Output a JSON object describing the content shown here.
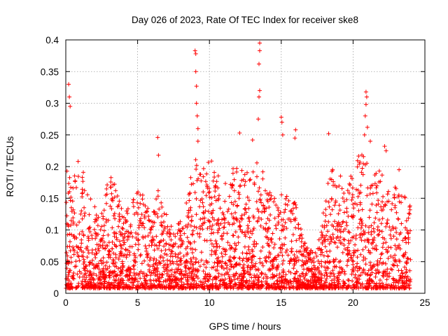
{
  "chart_data": {
    "type": "scatter",
    "title": "Day 026 of 2023, Rate Of TEC Index for receiver ske8",
    "xlabel": "GPS time / hours",
    "ylabel": "ROTI / TECUs",
    "xlim": [
      0,
      25
    ],
    "ylim": [
      0,
      0.4
    ],
    "xticks": [
      0,
      5,
      10,
      15,
      20,
      25
    ],
    "xtick_labels": [
      "0",
      "5",
      "10",
      "15",
      "20",
      "25"
    ],
    "yticks": [
      0,
      0.05,
      0.1,
      0.15,
      0.2,
      0.25,
      0.3,
      0.35,
      0.4
    ],
    "ytick_labels": [
      "0",
      "0.05",
      "0.1",
      "0.15",
      "0.2",
      "0.25",
      "0.3",
      "0.35",
      "0.4"
    ],
    "grid": true,
    "marker": "plus",
    "color": "#ff0000",
    "data_extent_hours": [
      0,
      24
    ],
    "series": [
      {
        "name": "ROTI",
        "outliers": [
          {
            "x": 0.2,
            "y": 0.33
          },
          {
            "x": 0.25,
            "y": 0.31
          },
          {
            "x": 0.3,
            "y": 0.295
          },
          {
            "x": 9.0,
            "y": 0.383
          },
          {
            "x": 9.05,
            "y": 0.378
          },
          {
            "x": 9.05,
            "y": 0.35
          },
          {
            "x": 9.1,
            "y": 0.327
          },
          {
            "x": 9.1,
            "y": 0.3
          },
          {
            "x": 9.15,
            "y": 0.28
          },
          {
            "x": 9.2,
            "y": 0.26
          },
          {
            "x": 9.2,
            "y": 0.24
          },
          {
            "x": 13.5,
            "y": 0.395
          },
          {
            "x": 13.5,
            "y": 0.383
          },
          {
            "x": 13.45,
            "y": 0.362
          },
          {
            "x": 13.5,
            "y": 0.32
          },
          {
            "x": 13.45,
            "y": 0.31
          },
          {
            "x": 13.4,
            "y": 0.275
          },
          {
            "x": 15.0,
            "y": 0.278
          },
          {
            "x": 15.05,
            "y": 0.27
          },
          {
            "x": 15.1,
            "y": 0.25
          },
          {
            "x": 20.9,
            "y": 0.318
          },
          {
            "x": 20.95,
            "y": 0.31
          },
          {
            "x": 20.9,
            "y": 0.298
          },
          {
            "x": 20.85,
            "y": 0.28
          },
          {
            "x": 21.0,
            "y": 0.262
          },
          {
            "x": 20.8,
            "y": 0.25
          },
          {
            "x": 6.4,
            "y": 0.246
          },
          {
            "x": 6.45,
            "y": 0.218
          },
          {
            "x": 18.3,
            "y": 0.252
          },
          {
            "x": 16.0,
            "y": 0.258
          },
          {
            "x": 15.95,
            "y": 0.245
          },
          {
            "x": 12.1,
            "y": 0.253
          },
          {
            "x": 13.0,
            "y": 0.242
          },
          {
            "x": 21.2,
            "y": 0.24
          },
          {
            "x": 22.3,
            "y": 0.225
          },
          {
            "x": 22.2,
            "y": 0.232
          },
          {
            "x": 23.2,
            "y": 0.195
          }
        ],
        "activity_envelope": {
          "hours": [
            0,
            0.5,
            1,
            1.5,
            2,
            2.5,
            3,
            3.5,
            4,
            4.5,
            5,
            5.5,
            6,
            6.5,
            7,
            7.5,
            8,
            8.5,
            9,
            9.5,
            10,
            10.5,
            11,
            11.5,
            12,
            12.5,
            13,
            13.5,
            14,
            14.5,
            15,
            15.5,
            16,
            16.5,
            17,
            17.5,
            18,
            18.5,
            19,
            19.5,
            20,
            20.5,
            21,
            21.5,
            22,
            22.5,
            23,
            23.5,
            24
          ],
          "typical_max_roti": [
            0.21,
            0.18,
            0.21,
            0.15,
            0.13,
            0.12,
            0.18,
            0.17,
            0.14,
            0.13,
            0.17,
            0.14,
            0.12,
            0.16,
            0.12,
            0.09,
            0.12,
            0.16,
            0.21,
            0.2,
            0.21,
            0.18,
            0.17,
            0.19,
            0.2,
            0.18,
            0.19,
            0.21,
            0.16,
            0.14,
            0.17,
            0.14,
            0.15,
            0.08,
            0.06,
            0.06,
            0.13,
            0.2,
            0.18,
            0.17,
            0.19,
            0.22,
            0.21,
            0.18,
            0.19,
            0.17,
            0.16,
            0.15,
            0.15
          ]
        }
      }
    ]
  }
}
